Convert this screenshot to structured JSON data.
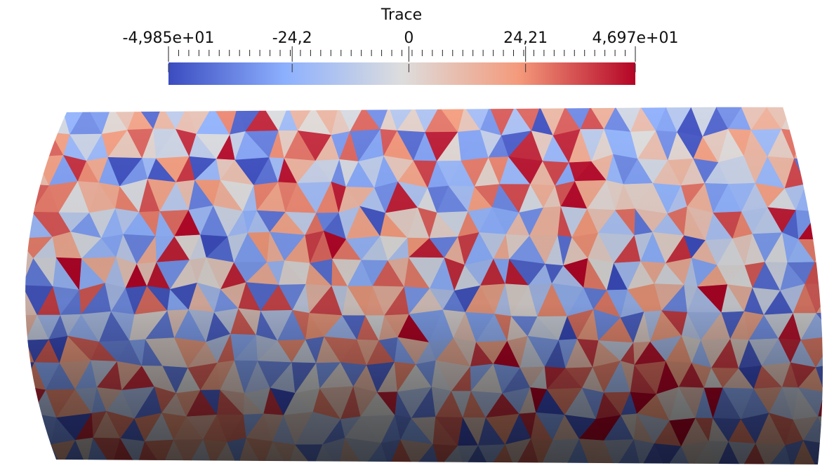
{
  "colorbar": {
    "title": "Trace",
    "ticks": [
      {
        "value": -49.85,
        "label": "-4,985e+01"
      },
      {
        "value": -24.2,
        "label": "-24,2"
      },
      0,
      {
        "value": 24.21,
        "label": "24,21"
      },
      {
        "value": 46.97,
        "label": "4,697e+01"
      }
    ]
  }
}
